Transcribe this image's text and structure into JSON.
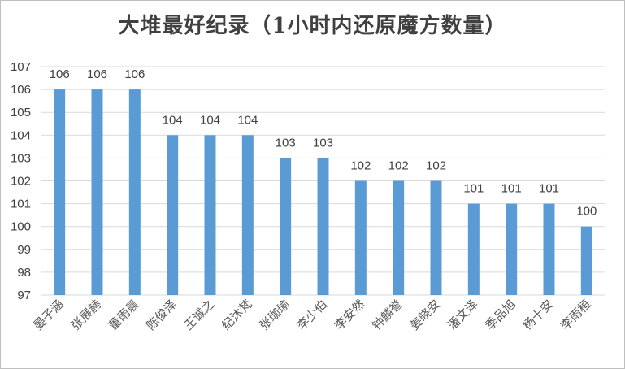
{
  "chart_data": {
    "type": "bar",
    "title": "大堆最好纪录（1小时内还原魔方数量）",
    "xlabel": "",
    "ylabel": "",
    "categories": [
      "晏子涵",
      "张展赫",
      "董雨晨",
      "陈俊泽",
      "王诚之",
      "纪沐梵",
      "张珈瑜",
      "李少伯",
      "李安然",
      "钟麟誉",
      "姜晓安",
      "潘文泽",
      "季品旭",
      "杨十安",
      "李雨桓"
    ],
    "values": [
      106,
      106,
      106,
      104,
      104,
      104,
      103,
      103,
      102,
      102,
      102,
      101,
      101,
      101,
      100
    ],
    "ylim": [
      97,
      107
    ],
    "yticks": [
      97,
      98,
      99,
      100,
      101,
      102,
      103,
      104,
      105,
      106,
      107
    ],
    "grid": true,
    "legend": "none",
    "bar_color": "#5b9bd5",
    "data_labels": true
  }
}
